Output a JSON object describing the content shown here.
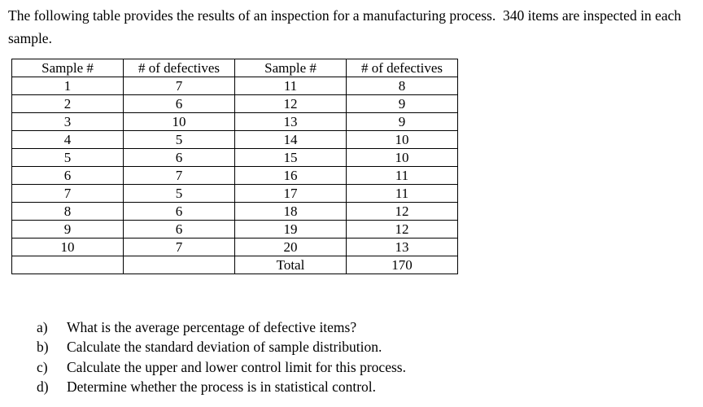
{
  "document": {
    "intro": "The following table provides the results of an inspection for a manufacturing process.  340 items are inspected in each sample.",
    "table": {
      "headers": [
        "Sample #",
        "# of defectives",
        "Sample #",
        "# of defectives"
      ],
      "rows": [
        [
          "1",
          "7",
          "11",
          "8"
        ],
        [
          "2",
          "6",
          "12",
          "9"
        ],
        [
          "3",
          "10",
          "13",
          "9"
        ],
        [
          "4",
          "5",
          "14",
          "10"
        ],
        [
          "5",
          "6",
          "15",
          "10"
        ],
        [
          "6",
          "7",
          "16",
          "11"
        ],
        [
          "7",
          "5",
          "17",
          "11"
        ],
        [
          "8",
          "6",
          "18",
          "12"
        ],
        [
          "9",
          "6",
          "19",
          "12"
        ],
        [
          "10",
          "7",
          "20",
          "13"
        ],
        [
          "",
          "",
          "Total",
          "170"
        ]
      ],
      "total_label": "Total",
      "total_value": "170"
    },
    "questions": [
      {
        "label": "a)",
        "text": "What is the average percentage of defective items?"
      },
      {
        "label": "b)",
        "text": "Calculate the standard deviation of sample distribution."
      },
      {
        "label": "c)",
        "text": "Calculate the upper and lower control limit for this process."
      },
      {
        "label": "d)",
        "text": "Determine whether the process is in statistical control."
      }
    ]
  }
}
